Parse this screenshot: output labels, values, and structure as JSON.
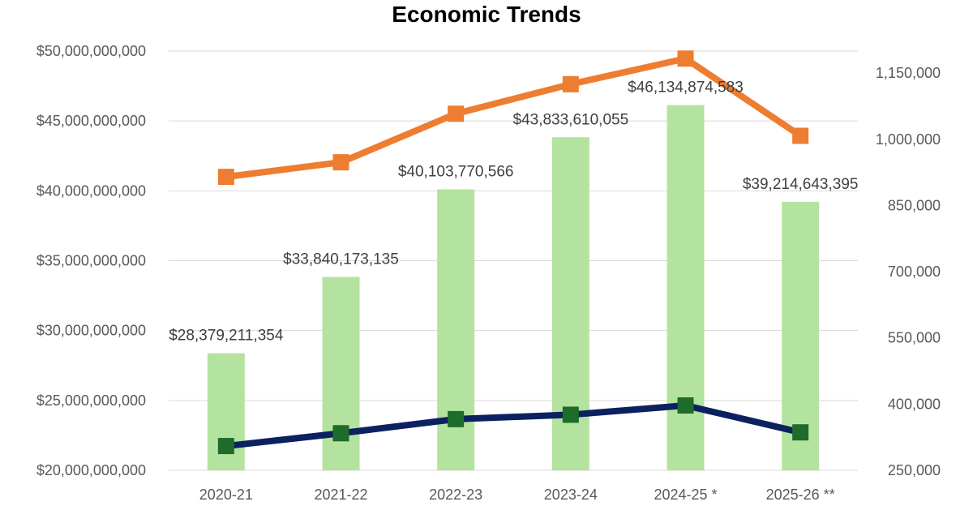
{
  "chart_data": {
    "type": "bar",
    "title": "Economic Trends",
    "categories": [
      "2020-21",
      "2021-22",
      "2022-23",
      "2023-24",
      "2024-25 *",
      "2025-26 **"
    ],
    "ylim": [
      20000000000,
      50000000000
    ],
    "y_ticks": [
      20000000000,
      25000000000,
      30000000000,
      35000000000,
      40000000000,
      45000000000,
      50000000000
    ],
    "y_tick_labels": [
      "$20,000,000,000",
      "$25,000,000,000",
      "$30,000,000,000",
      "$35,000,000,000",
      "$40,000,000,000",
      "$45,000,000,000",
      "$50,000,000,000"
    ],
    "y2lim": [
      250000,
      1200000
    ],
    "y2_ticks": [
      250000,
      400000,
      550000,
      700000,
      850000,
      1000000,
      1150000
    ],
    "y2_tick_labels": [
      "250,000",
      "400,000",
      "550,000",
      "700,000",
      "850,000",
      "1,000,000",
      "1,150,000"
    ],
    "grid": true,
    "bars": {
      "values": [
        28379211354,
        33840173135,
        40103770566,
        43833610055,
        46134874583,
        39214643395
      ],
      "labels": [
        "$28,379,211,354",
        "$33,840,173,135",
        "$40,103,770,566",
        "$43,833,610,055",
        "$46,134,874,583",
        "$39,214,643,395"
      ],
      "color": "#b4e3a0"
    },
    "series": [
      {
        "name": "orange-line",
        "axis": "secondary",
        "color": "#ed7d31",
        "marker_color": "#ed7d31",
        "values": [
          915000,
          948000,
          1058000,
          1125000,
          1183000,
          1008000
        ]
      },
      {
        "name": "navy-line",
        "axis": "secondary",
        "color": "#0b2160",
        "marker_color": "#1e6b2a",
        "values": [
          305000,
          334000,
          366000,
          376000,
          397000,
          336000
        ]
      }
    ]
  }
}
